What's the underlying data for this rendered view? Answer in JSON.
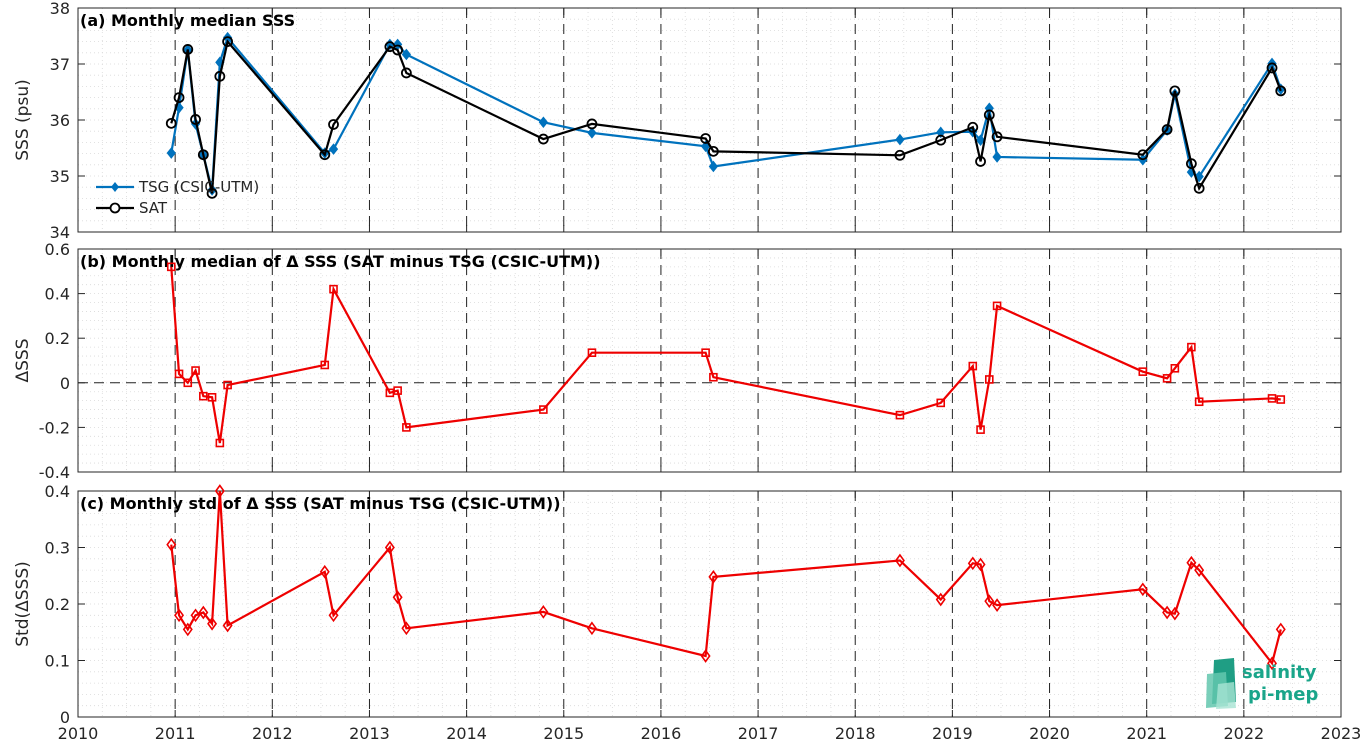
{
  "logo_text": [
    "salinity",
    "pi-mep"
  ],
  "colors": {
    "tsg": "#0072bd",
    "sat": "#000000",
    "diff": "#ee0000"
  },
  "chart_data": [
    {
      "type": "line",
      "title": "(a) Monthly median SSS",
      "ylabel": "SSS (psu)",
      "xlim": [
        2010,
        2023
      ],
      "ylim": [
        34,
        38
      ],
      "yticks": [
        34,
        35,
        36,
        37,
        38
      ],
      "grid": true,
      "legend": "left",
      "series": [
        {
          "name": "TSG (CSIC-UTM)",
          "marker": "diamond-filled",
          "color": "#0072bd",
          "x": [
            2010.96,
            2011.04,
            2011.13,
            2011.21,
            2011.29,
            2011.38,
            2011.46,
            2011.54,
            2012.54,
            2012.63,
            2013.21,
            2013.29,
            2013.38,
            2014.79,
            2015.29,
            2016.46,
            2016.54,
            2018.46,
            2018.88,
            2019.21,
            2019.29,
            2019.38,
            2019.46,
            2020.96,
            2021.21,
            2021.29,
            2021.46,
            2021.54,
            2022.29,
            2022.38
          ],
          "y": [
            35.41,
            36.22,
            37.25,
            35.93,
            35.38,
            34.75,
            37.03,
            37.47,
            35.41,
            35.48,
            37.35,
            37.35,
            37.17,
            35.96,
            35.77,
            35.53,
            35.17,
            35.65,
            35.78,
            35.79,
            35.64,
            36.21,
            35.34,
            35.29,
            35.82,
            36.46,
            35.07,
            34.99,
            37.01,
            36.55
          ]
        },
        {
          "name": "SAT",
          "marker": "circle-open",
          "color": "#000000",
          "x": [
            2010.96,
            2011.04,
            2011.13,
            2011.21,
            2011.29,
            2011.38,
            2011.46,
            2011.54,
            2012.54,
            2012.63,
            2013.21,
            2013.29,
            2013.38,
            2014.79,
            2015.29,
            2016.46,
            2016.54,
            2018.46,
            2018.88,
            2019.21,
            2019.29,
            2019.38,
            2019.46,
            2020.96,
            2021.21,
            2021.29,
            2021.46,
            2021.54,
            2022.29,
            2022.38
          ],
          "y": [
            35.94,
            36.4,
            37.26,
            36.01,
            35.38,
            34.69,
            36.78,
            37.4,
            35.38,
            35.92,
            37.31,
            37.25,
            36.84,
            35.66,
            35.93,
            35.67,
            35.44,
            35.37,
            35.64,
            35.87,
            35.26,
            36.09,
            35.7,
            35.38,
            35.83,
            36.52,
            35.22,
            34.78,
            36.93,
            36.52
          ]
        }
      ]
    },
    {
      "type": "line",
      "title": "(b) Monthly median of Δ SSS (SAT minus TSG (CSIC-UTM))",
      "ylabel": "ΔSSS",
      "xlim": [
        2010,
        2023
      ],
      "ylim": [
        -0.4,
        0.6
      ],
      "yticks": [
        -0.4,
        -0.2,
        0,
        0.2,
        0.4,
        0.6
      ],
      "grid": true,
      "series": [
        {
          "marker": "square-open",
          "color": "#ee0000",
          "x": [
            2010.96,
            2011.04,
            2011.13,
            2011.21,
            2011.29,
            2011.38,
            2011.46,
            2011.54,
            2012.54,
            2012.63,
            2013.21,
            2013.29,
            2013.38,
            2014.79,
            2015.29,
            2016.46,
            2016.54,
            2018.46,
            2018.88,
            2019.21,
            2019.29,
            2019.38,
            2019.46,
            2020.96,
            2021.21,
            2021.29,
            2021.46,
            2021.54,
            2022.29,
            2022.38
          ],
          "y": [
            0.52,
            0.04,
            0.0,
            0.055,
            -0.06,
            -0.065,
            -0.27,
            -0.01,
            0.08,
            0.42,
            -0.045,
            -0.035,
            -0.2,
            -0.12,
            0.135,
            0.135,
            0.025,
            -0.145,
            -0.09,
            0.075,
            -0.21,
            0.015,
            0.345,
            0.05,
            0.02,
            0.065,
            0.16,
            -0.085,
            -0.07,
            -0.075
          ]
        }
      ]
    },
    {
      "type": "line",
      "title": "(c) Monthly std of Δ SSS (SAT minus TSG (CSIC-UTM))",
      "ylabel": "Std(ΔSSS)",
      "xlabel": "",
      "xlim": [
        2010,
        2023
      ],
      "xticks": [
        2010,
        2011,
        2012,
        2013,
        2014,
        2015,
        2016,
        2017,
        2018,
        2019,
        2020,
        2021,
        2022,
        2023
      ],
      "ylim": [
        0,
        0.4
      ],
      "yticks": [
        0,
        0.1,
        0.2,
        0.3,
        0.4
      ],
      "grid": true,
      "series": [
        {
          "marker": "diamond-open",
          "color": "#ee0000",
          "x": [
            2010.96,
            2011.04,
            2011.13,
            2011.21,
            2011.29,
            2011.38,
            2011.46,
            2011.54,
            2012.54,
            2012.63,
            2013.21,
            2013.29,
            2013.38,
            2014.79,
            2015.29,
            2016.46,
            2016.54,
            2018.46,
            2018.88,
            2019.21,
            2019.29,
            2019.38,
            2019.46,
            2020.96,
            2021.21,
            2021.29,
            2021.46,
            2021.54,
            2022.29,
            2022.38
          ],
          "y": [
            0.305,
            0.18,
            0.155,
            0.18,
            0.185,
            0.165,
            0.4,
            0.162,
            0.257,
            0.18,
            0.3,
            0.212,
            0.157,
            0.186,
            0.157,
            0.108,
            0.248,
            0.277,
            0.208,
            0.272,
            0.27,
            0.205,
            0.198,
            0.226,
            0.185,
            0.183,
            0.273,
            0.26,
            0.095,
            0.155
          ]
        }
      ]
    }
  ]
}
